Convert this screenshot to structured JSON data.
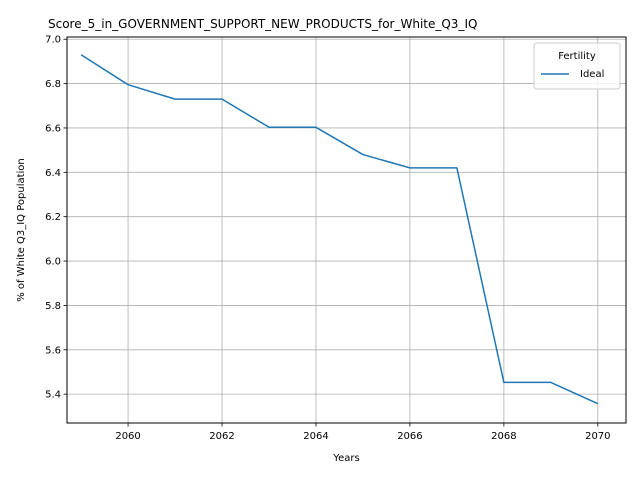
{
  "chart_data": {
    "type": "line",
    "title": "Score_5_in_GOVERNMENT_SUPPORT_NEW_PRODUCTS_for_White_Q3_IQ",
    "xlabel": "Years",
    "ylabel": "% of White Q3_IQ Population",
    "xlim": [
      2058.7,
      2070.6
    ],
    "ylim": [
      5.27,
      7.01
    ],
    "x_ticks": [
      2060,
      2062,
      2064,
      2066,
      2068,
      2070
    ],
    "y_ticks": [
      5.4,
      5.6,
      5.8,
      6.0,
      6.2,
      6.4,
      6.6,
      6.8,
      7.0
    ],
    "x_tick_labels": [
      "2060",
      "2062",
      "2064",
      "2066",
      "2068",
      "2070"
    ],
    "y_tick_labels": [
      "5.4",
      "5.6",
      "5.8",
      "6.0",
      "6.2",
      "6.4",
      "6.6",
      "6.8",
      "7.0"
    ],
    "grid": true,
    "legend": {
      "title": "Fertility",
      "placement": "top-right"
    },
    "series": [
      {
        "name": "Ideal",
        "color": "#1f77b4",
        "x": [
          2059,
          2060,
          2061,
          2062,
          2063,
          2064,
          2065,
          2066,
          2067,
          2068,
          2069,
          2070
        ],
        "values": [
          6.93,
          6.795,
          6.73,
          6.73,
          6.603,
          6.603,
          6.48,
          6.42,
          6.42,
          5.453,
          5.453,
          5.357
        ]
      }
    ]
  }
}
